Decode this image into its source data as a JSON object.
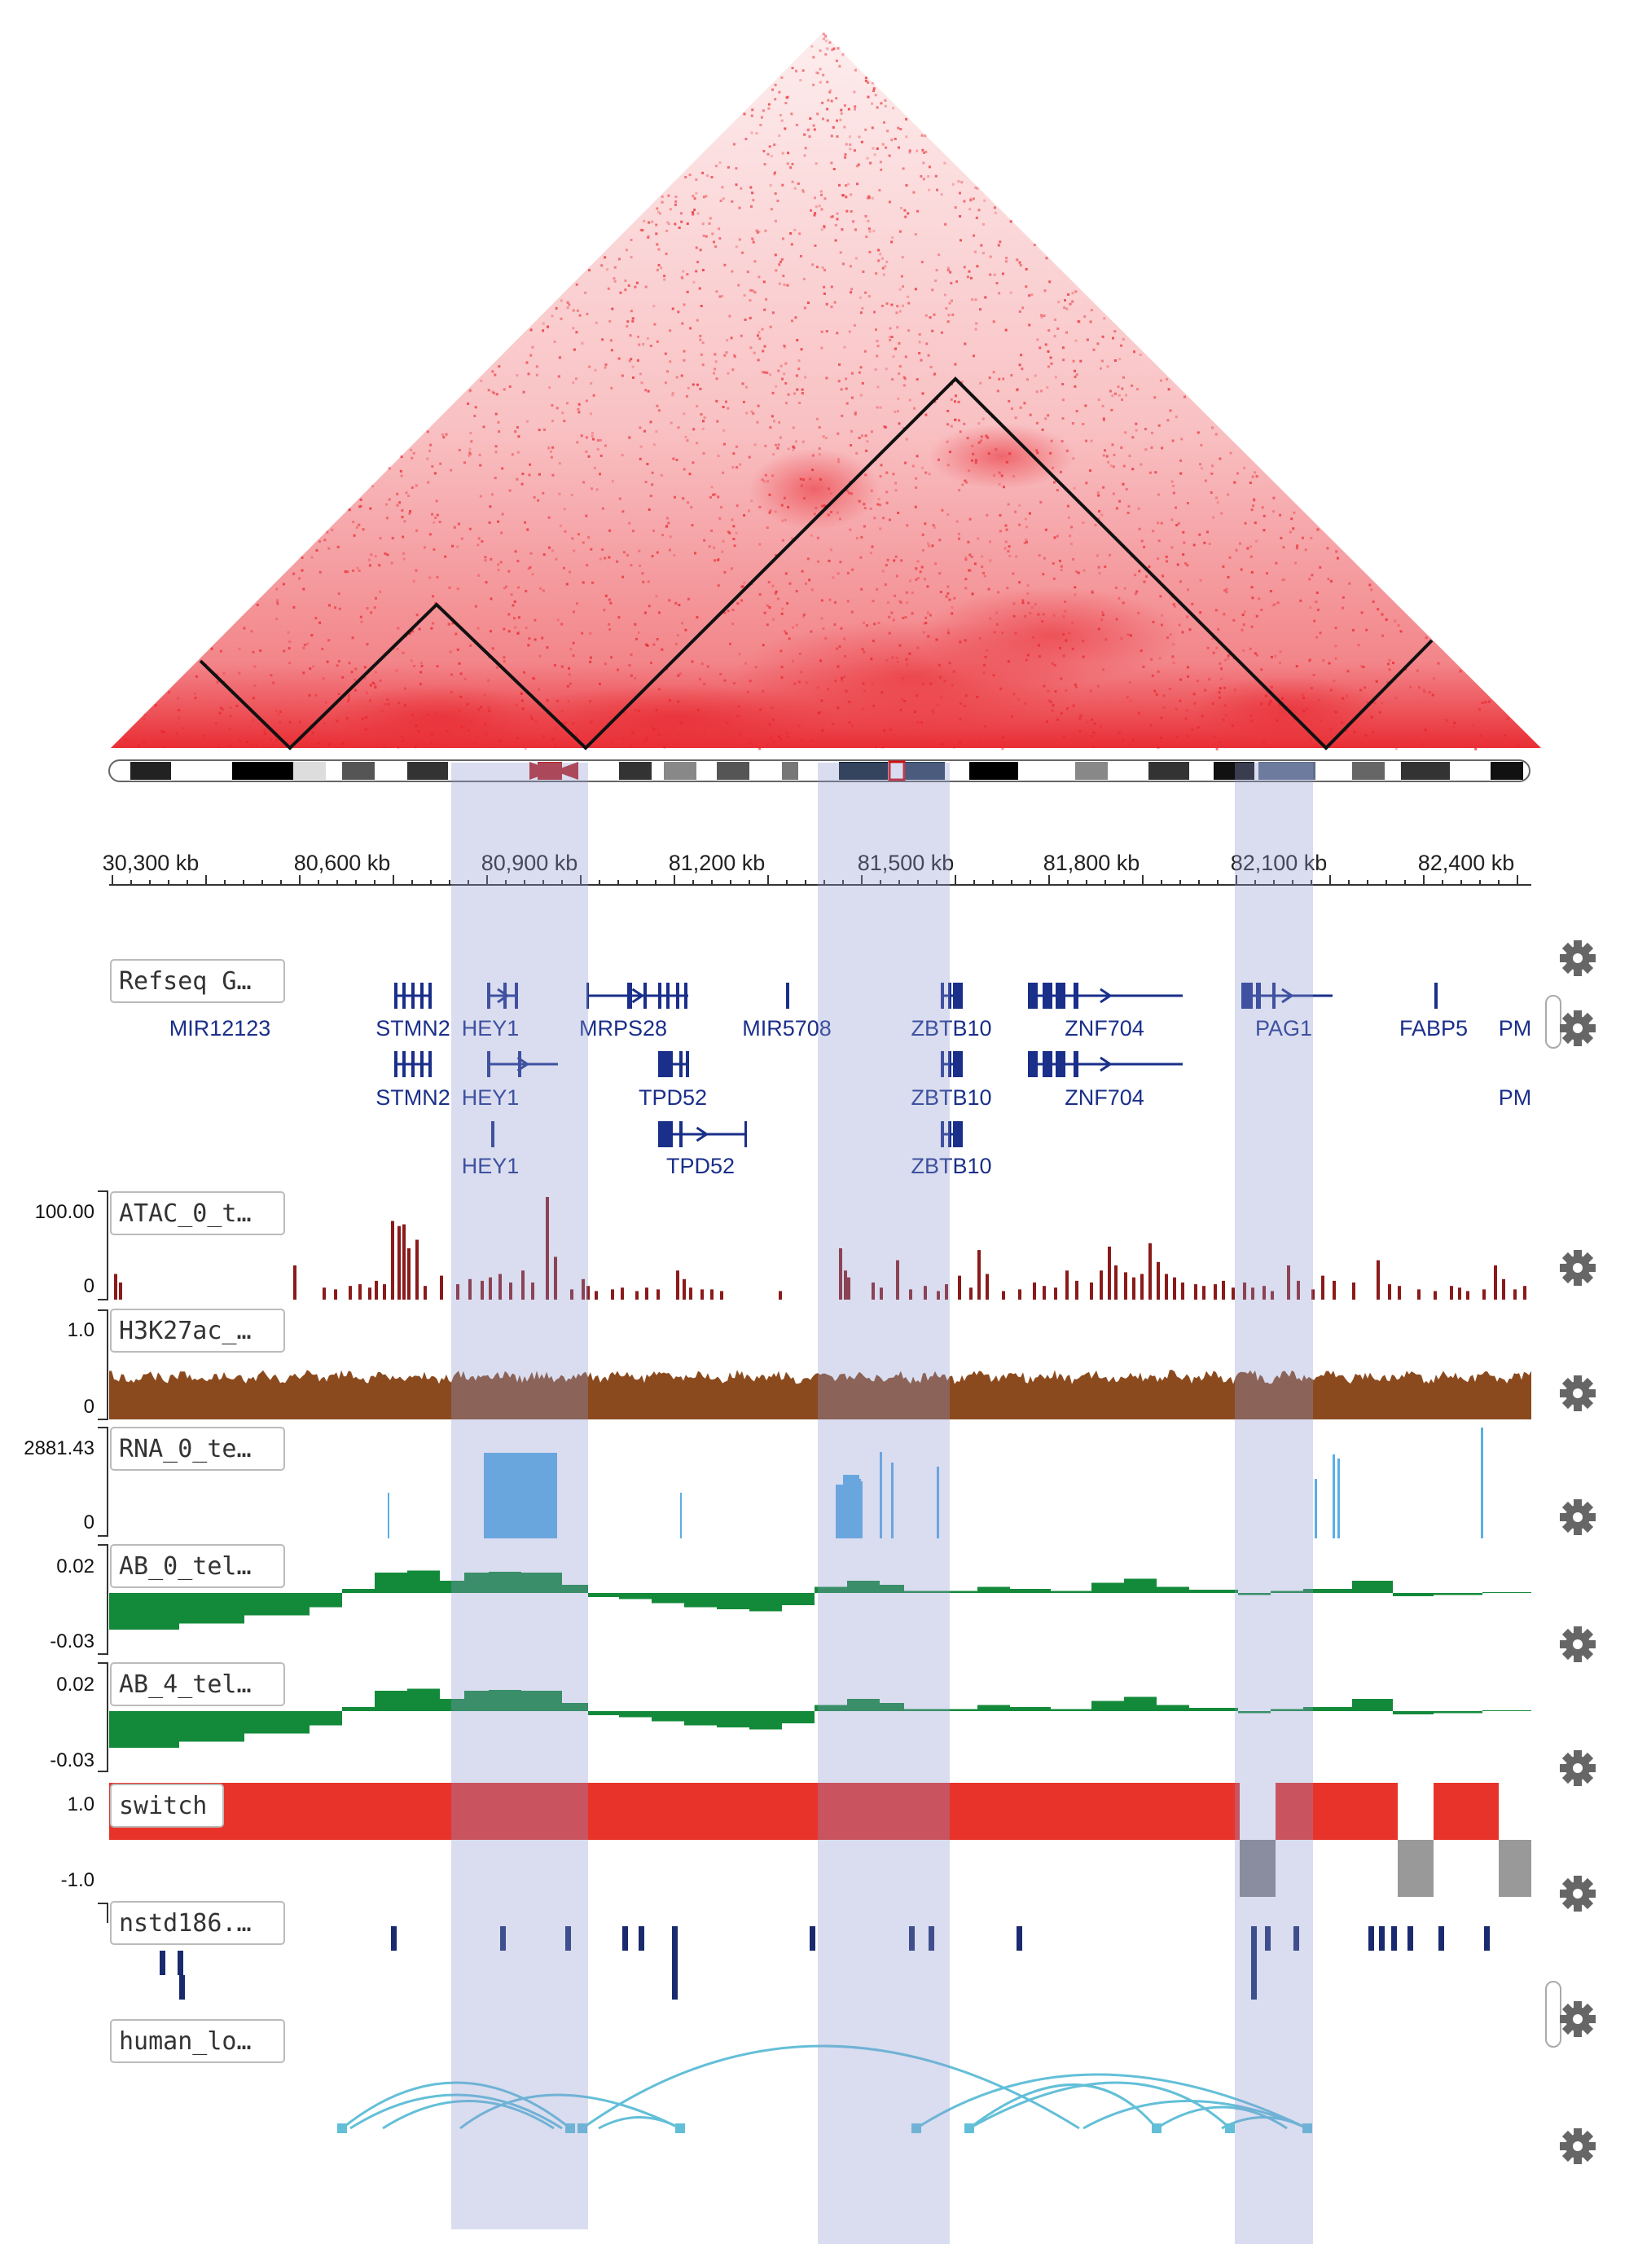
{
  "axis": {
    "unit": "kb",
    "ticks": [
      "30,300 kb",
      "80,600 kb",
      "80,900 kb",
      "81,200 kb",
      "81,500 kb",
      "81,800 kb",
      "82,100 kb",
      "82,400 kb"
    ]
  },
  "tracks": {
    "refseq": {
      "label": "Refseq G…"
    },
    "atac": {
      "label": "ATAC_0_t…",
      "max": "100.00",
      "min": "0",
      "color": "#8b1a1a"
    },
    "h3k27ac": {
      "label": "H3K27ac_…",
      "max": "1.0",
      "min": "0",
      "color": "#8b4a1e"
    },
    "rna": {
      "label": "RNA_0_te…",
      "max": "2881.43",
      "min": "0",
      "color": "#5aaee6"
    },
    "ab0": {
      "label": "AB_0_tel…",
      "max": "0.02",
      "min": "-0.03",
      "color": "#138a3a"
    },
    "ab4": {
      "label": "AB_4_tel…",
      "max": "0.02",
      "min": "-0.03",
      "color": "#138a3a"
    },
    "switch": {
      "label": "switch",
      "max": "1.0",
      "min": "-1.0",
      "color": "#e8332a",
      "neg_color": "#999999"
    },
    "nstd": {
      "label": "nstd186.…",
      "color": "#1a2a6e"
    },
    "loops": {
      "label": "human_lo…",
      "color": "#63bfd8"
    }
  },
  "genes": [
    {
      "name": "MIR12123",
      "row": 0
    },
    {
      "name": "STMN2",
      "row": 0
    },
    {
      "name": "HEY1",
      "row": 0
    },
    {
      "name": "MRPS28",
      "row": 0
    },
    {
      "name": "MIR5708",
      "row": 0
    },
    {
      "name": "ZBTB10",
      "row": 0
    },
    {
      "name": "ZNF704",
      "row": 0
    },
    {
      "name": "PAG1",
      "row": 0
    },
    {
      "name": "FABP5",
      "row": 0
    },
    {
      "name": "PM",
      "row": 0
    },
    {
      "name": "STMN2",
      "row": 1
    },
    {
      "name": "HEY1",
      "row": 1
    },
    {
      "name": "TPD52",
      "row": 1
    },
    {
      "name": "ZBTB10",
      "row": 1
    },
    {
      "name": "ZNF704",
      "row": 1
    },
    {
      "name": "PM",
      "row": 1
    },
    {
      "name": "HEY1",
      "row": 2
    },
    {
      "name": "TPD52",
      "row": 2
    },
    {
      "name": "ZBTB10",
      "row": 2
    }
  ],
  "colors": {
    "heatmap": "#e8222a",
    "tad_line": "#111111",
    "highlight": "#9aa6d4"
  },
  "icons": [
    "gear-icon"
  ]
}
